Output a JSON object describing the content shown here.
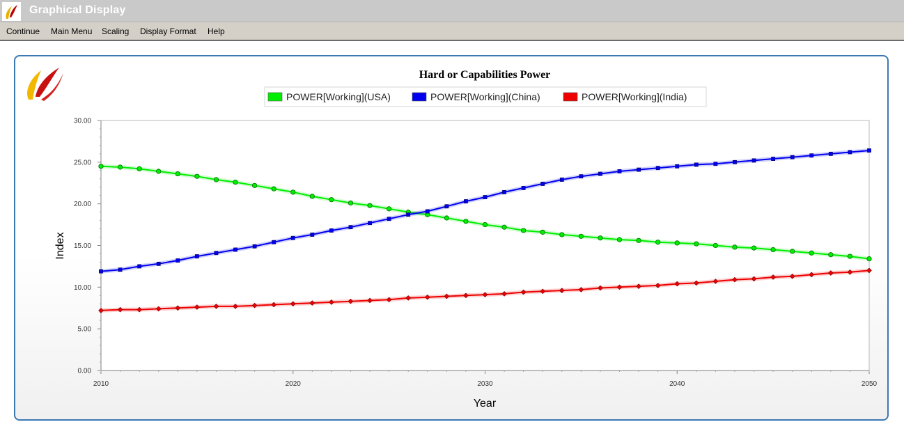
{
  "window": {
    "title": "Graphical Display"
  },
  "menu": [
    "Continue",
    "Main Menu",
    "Scaling",
    "Display Format",
    "Help"
  ],
  "icons": {
    "app": "app-logo-icon",
    "brand": "brand-logo-icon"
  },
  "colors": {
    "usa": "#00ee00",
    "china": "#0000ee",
    "india": "#ee0000",
    "panel_border": "#3c78b4"
  },
  "chart_data": {
    "type": "line",
    "title": "Hard or Capabilities Power",
    "xlabel": "Year",
    "ylabel": "Index",
    "xlim": [
      2010,
      2050
    ],
    "ylim": [
      0,
      30
    ],
    "xticks": [
      "2010",
      "2020",
      "2030",
      "2040",
      "2050"
    ],
    "yticks": [
      "0.00",
      "5.00",
      "10.00",
      "15.00",
      "20.00",
      "25.00",
      "30.00"
    ],
    "grid": false,
    "legend_position": "top-center",
    "x": [
      2010,
      2011,
      2012,
      2013,
      2014,
      2015,
      2016,
      2017,
      2018,
      2019,
      2020,
      2021,
      2022,
      2023,
      2024,
      2025,
      2026,
      2027,
      2028,
      2029,
      2030,
      2031,
      2032,
      2033,
      2034,
      2035,
      2036,
      2037,
      2038,
      2039,
      2040,
      2041,
      2042,
      2043,
      2044,
      2045,
      2046,
      2047,
      2048,
      2049,
      2050
    ],
    "series": [
      {
        "name": "POWER[Working](USA)",
        "color": "#00ee00",
        "marker": "circle",
        "values": [
          24.5,
          24.4,
          24.2,
          23.9,
          23.6,
          23.3,
          22.9,
          22.6,
          22.2,
          21.8,
          21.4,
          20.9,
          20.5,
          20.1,
          19.8,
          19.4,
          19.0,
          18.7,
          18.3,
          17.9,
          17.5,
          17.2,
          16.8,
          16.6,
          16.3,
          16.1,
          15.9,
          15.7,
          15.6,
          15.4,
          15.3,
          15.2,
          15.0,
          14.8,
          14.7,
          14.5,
          14.3,
          14.1,
          13.9,
          13.7,
          13.4
        ]
      },
      {
        "name": "POWER[Working](China)",
        "color": "#0000ee",
        "marker": "square",
        "values": [
          11.9,
          12.1,
          12.5,
          12.8,
          13.2,
          13.7,
          14.1,
          14.5,
          14.9,
          15.4,
          15.9,
          16.3,
          16.8,
          17.2,
          17.7,
          18.2,
          18.7,
          19.1,
          19.7,
          20.3,
          20.8,
          21.4,
          21.9,
          22.4,
          22.9,
          23.3,
          23.6,
          23.9,
          24.1,
          24.3,
          24.5,
          24.7,
          24.8,
          25.0,
          25.2,
          25.4,
          25.6,
          25.8,
          26.0,
          26.2,
          26.4
        ]
      },
      {
        "name": "POWER[Working](India)",
        "color": "#ee0000",
        "marker": "diamond",
        "values": [
          7.2,
          7.3,
          7.3,
          7.4,
          7.5,
          7.6,
          7.7,
          7.7,
          7.8,
          7.9,
          8.0,
          8.1,
          8.2,
          8.3,
          8.4,
          8.5,
          8.7,
          8.8,
          8.9,
          9.0,
          9.1,
          9.2,
          9.4,
          9.5,
          9.6,
          9.7,
          9.9,
          10.0,
          10.1,
          10.2,
          10.4,
          10.5,
          10.7,
          10.9,
          11.0,
          11.2,
          11.3,
          11.5,
          11.7,
          11.8,
          12.0
        ]
      }
    ]
  }
}
